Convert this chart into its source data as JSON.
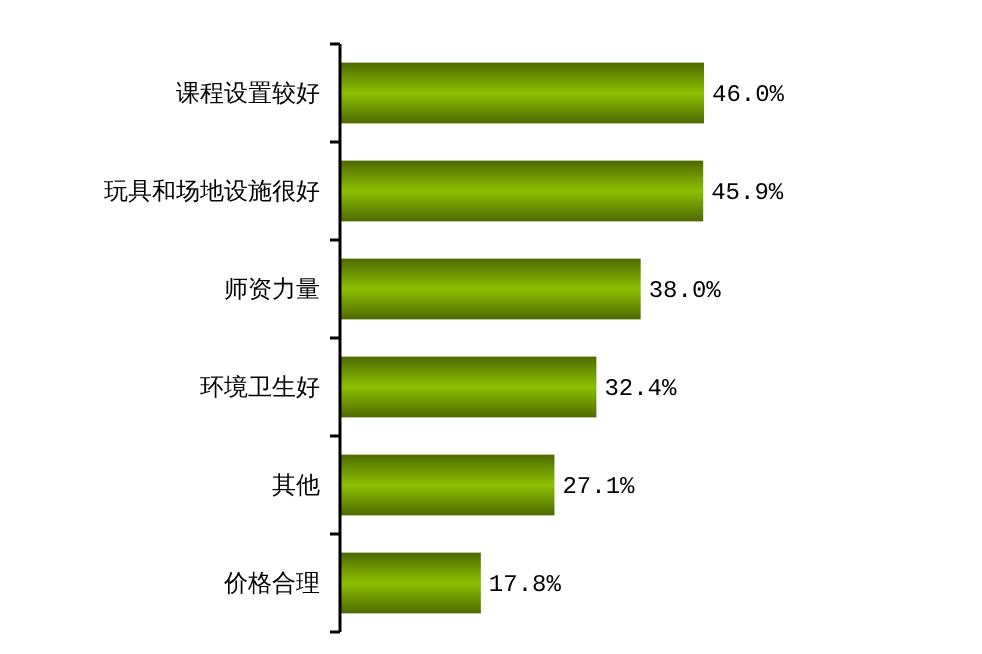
{
  "chart_data": {
    "type": "bar",
    "orientation": "horizontal",
    "categories": [
      "课程设置较好",
      "玩具和场地设施很好",
      "师资力量",
      "环境卫生好",
      "其他",
      "价格合理"
    ],
    "values": [
      46.0,
      45.9,
      38.0,
      32.4,
      27.1,
      17.8
    ],
    "value_labels": [
      "46.0%",
      "45.9%",
      "38.0%",
      "32.4%",
      "27.1%",
      "17.8%"
    ],
    "color": "#8cc000"
  }
}
